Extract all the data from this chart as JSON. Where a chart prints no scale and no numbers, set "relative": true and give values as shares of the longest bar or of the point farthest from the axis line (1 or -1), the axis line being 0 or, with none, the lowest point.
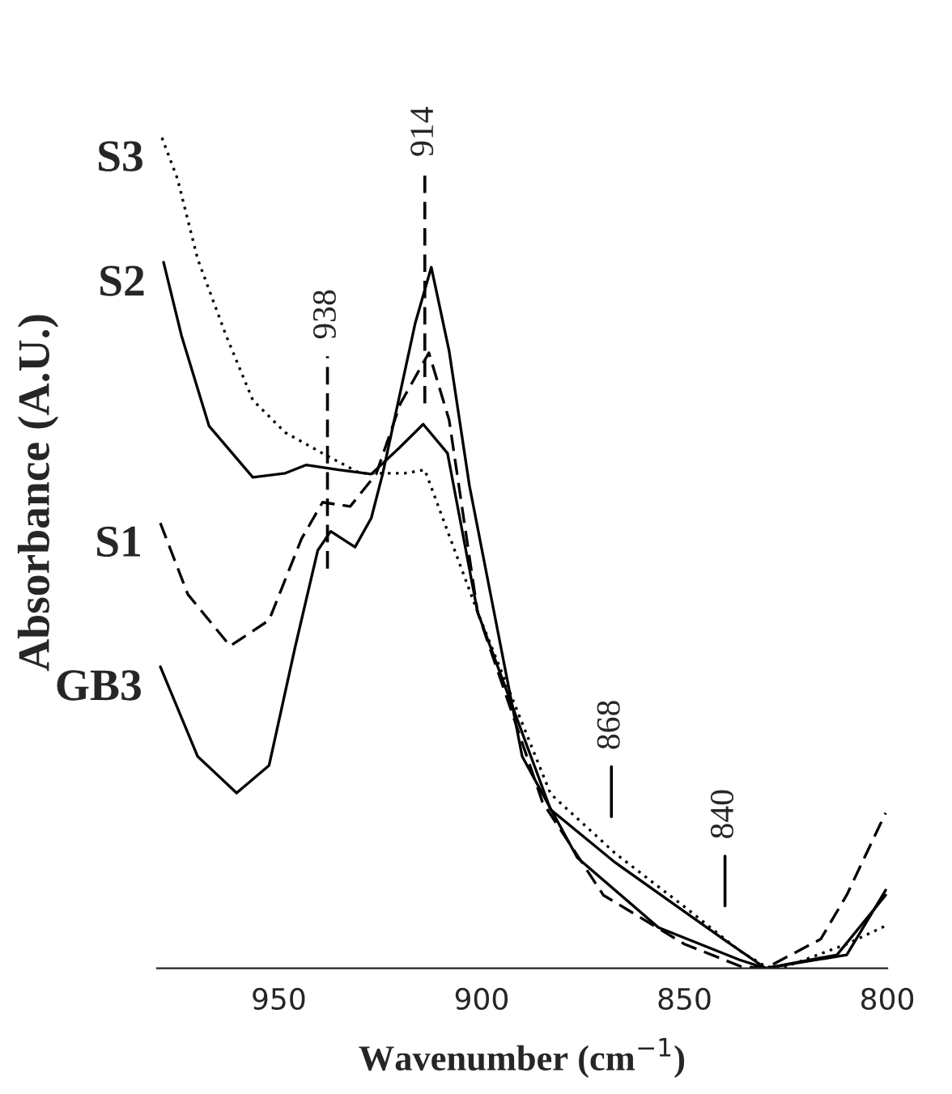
{
  "chart_data": {
    "type": "line",
    "relative": true,
    "xlabel": "Wavenumber (cm$^{−1}$)",
    "ylabel": "Absorbance (A.U.)",
    "xlim": [
      980,
      800
    ],
    "xticks": [
      950,
      900,
      850,
      800
    ],
    "grid": false,
    "legend": false,
    "marker": "none",
    "series": [
      {
        "name": "S3",
        "color": "#000000",
        "line_style": "dotted",
        "x": [
          978.8,
          975,
          970,
          963,
          956.4,
          948.4,
          939.2,
          930,
          919,
          914,
          901,
          883,
          867,
          850,
          836.4,
          830,
          826,
          810,
          800.4
        ],
        "values": [
          1.0,
          0.951,
          0.854,
          0.762,
          0.684,
          0.645,
          0.62,
          0.596,
          0.596,
          0.6,
          0.429,
          0.21,
          0.138,
          0.074,
          0.021,
          0.002,
          0.0,
          0.029,
          0.051
        ]
      },
      {
        "name": "S2",
        "color": "#000000",
        "line_style": "solid",
        "x": [
          978.4,
          974,
          967.2,
          956.4,
          948.4,
          943.2,
          935.2,
          927.2,
          920.4,
          914.4,
          908.4,
          901,
          883,
          867,
          850,
          840.4,
          830,
          810,
          800.4
        ],
        "values": [
          0.85,
          0.762,
          0.653,
          0.591,
          0.596,
          0.606,
          0.6,
          0.595,
          0.626,
          0.655,
          0.62,
          0.429,
          0.191,
          0.127,
          0.068,
          0.035,
          0.0,
          0.016,
          0.094
        ]
      },
      {
        "name": "S1",
        "color": "#000000",
        "line_style": "dashed",
        "x": [
          979.2,
          972.4,
          962,
          952.4,
          944.4,
          939.2,
          932.4,
          926,
          920,
          913,
          908,
          901,
          885,
          870,
          850,
          836,
          830,
          816.4,
          810,
          800.4
        ],
        "values": [
          0.536,
          0.45,
          0.388,
          0.419,
          0.517,
          0.561,
          0.556,
          0.595,
          0.68,
          0.741,
          0.66,
          0.429,
          0.2,
          0.088,
          0.029,
          0.002,
          0.0,
          0.035,
          0.088,
          0.187
        ]
      },
      {
        "name": "GB3",
        "color": "#000000",
        "line_style": "solid",
        "x": [
          979.2,
          970,
          960.4,
          952.4,
          946,
          940.4,
          937.2,
          931.2,
          927.2,
          924.4,
          916.4,
          912.4,
          908,
          903,
          890,
          876.4,
          856.4,
          836.4,
          830,
          812.4,
          800.4
        ],
        "values": [
          0.363,
          0.255,
          0.211,
          0.244,
          0.386,
          0.503,
          0.526,
          0.507,
          0.542,
          0.595,
          0.776,
          0.844,
          0.743,
          0.581,
          0.255,
          0.133,
          0.049,
          0.01,
          0.0,
          0.016,
          0.088
        ]
      }
    ],
    "ref_lines": [
      {
        "axis": "x",
        "value": 938,
        "label": "938",
        "line_style": "dashed"
      },
      {
        "axis": "x",
        "value": 914,
        "label": "914",
        "line_style": "dashed"
      },
      {
        "axis": "x",
        "value": 868,
        "label": "868",
        "line_style": "solid"
      },
      {
        "axis": "x",
        "value": 840,
        "label": "840",
        "line_style": "solid"
      }
    ]
  }
}
